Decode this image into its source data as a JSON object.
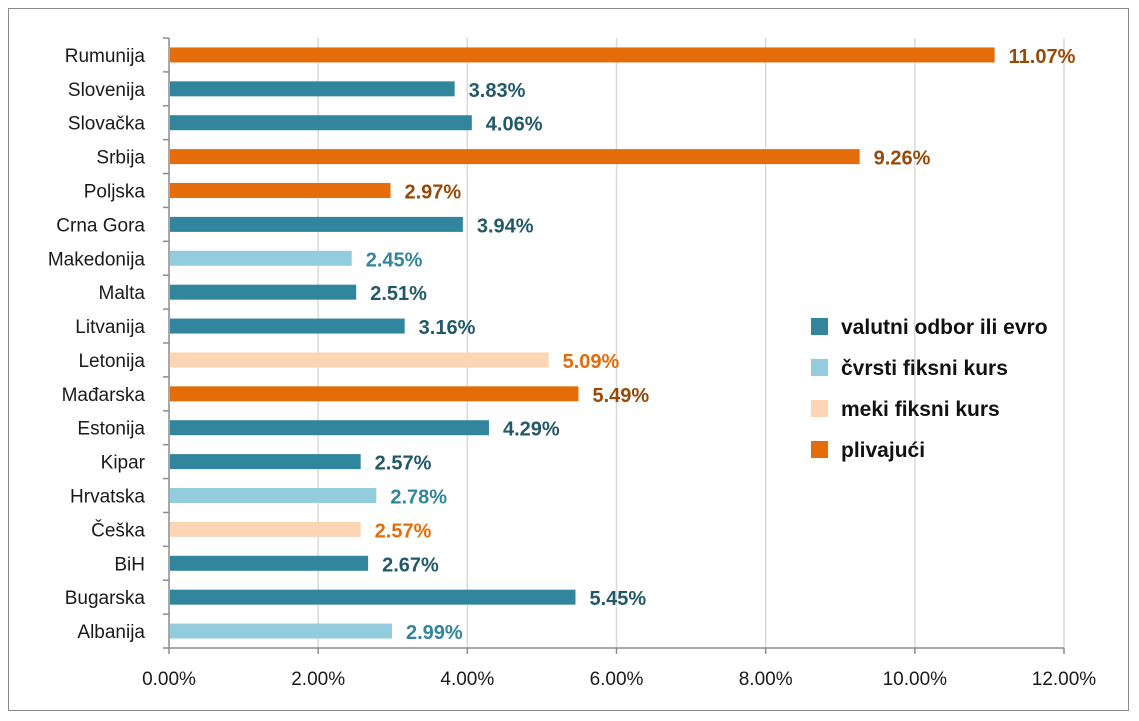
{
  "chart_data": {
    "type": "bar",
    "orientation": "horizontal",
    "categories": [
      "Rumunija",
      "Slovenija",
      "Slovačka",
      "Srbija",
      "Poljska",
      "Crna Gora",
      "Makedonija",
      "Malta",
      "Litvanija",
      "Letonija",
      "Mađarska",
      "Estonija",
      "Kipar",
      "Hrvatska",
      "Češka",
      "BiH",
      "Bugarska",
      "Albanija"
    ],
    "values": [
      11.07,
      3.83,
      4.06,
      9.26,
      2.97,
      3.94,
      2.45,
      2.51,
      3.16,
      5.09,
      5.49,
      4.29,
      2.57,
      2.78,
      2.57,
      2.67,
      5.45,
      2.99
    ],
    "value_labels": [
      "11.07%",
      "3.83%",
      "4.06%",
      "9.26%",
      "2.97%",
      "3.94%",
      "2.45%",
      "2.51%",
      "3.16%",
      "5.09%",
      "5.49%",
      "4.29%",
      "2.57%",
      "2.78%",
      "2.57%",
      "2.67%",
      "5.45%",
      "2.99%"
    ],
    "regime": [
      "plivajući",
      "valutni odbor ili evro",
      "valutni odbor ili evro",
      "plivajući",
      "plivajući",
      "valutni odbor ili evro",
      "čvrsti fiksni kurs",
      "valutni odbor ili evro",
      "valutni odbor ili evro",
      "meki fiksni kurs",
      "plivajući",
      "valutni odbor ili evro",
      "valutni odbor ili evro",
      "čvrsti fiksni kurs",
      "meki fiksni kurs",
      "valutni odbor ili evro",
      "valutni odbor ili evro",
      "čvrsti fiksni kurs"
    ],
    "legend": [
      {
        "name": "valutni odbor ili evro",
        "color": "#31859c",
        "label_color": "#215968"
      },
      {
        "name": "čvrsti fiksni kurs",
        "color": "#93cddd",
        "label_color": "#31859c"
      },
      {
        "name": "meki fiksni kurs",
        "color": "#fcd5b5",
        "label_color": "#e46c0a"
      },
      {
        "name": "plivajući",
        "color": "#e46c0a",
        "label_color": "#984807"
      }
    ],
    "legend_position": "right",
    "xlim": [
      0,
      12
    ],
    "x_ticks": [
      "0.00%",
      "2.00%",
      "4.00%",
      "6.00%",
      "8.00%",
      "10.00%",
      "12.00%"
    ],
    "grid": "vertical",
    "title": "",
    "xlabel": "",
    "ylabel": ""
  }
}
